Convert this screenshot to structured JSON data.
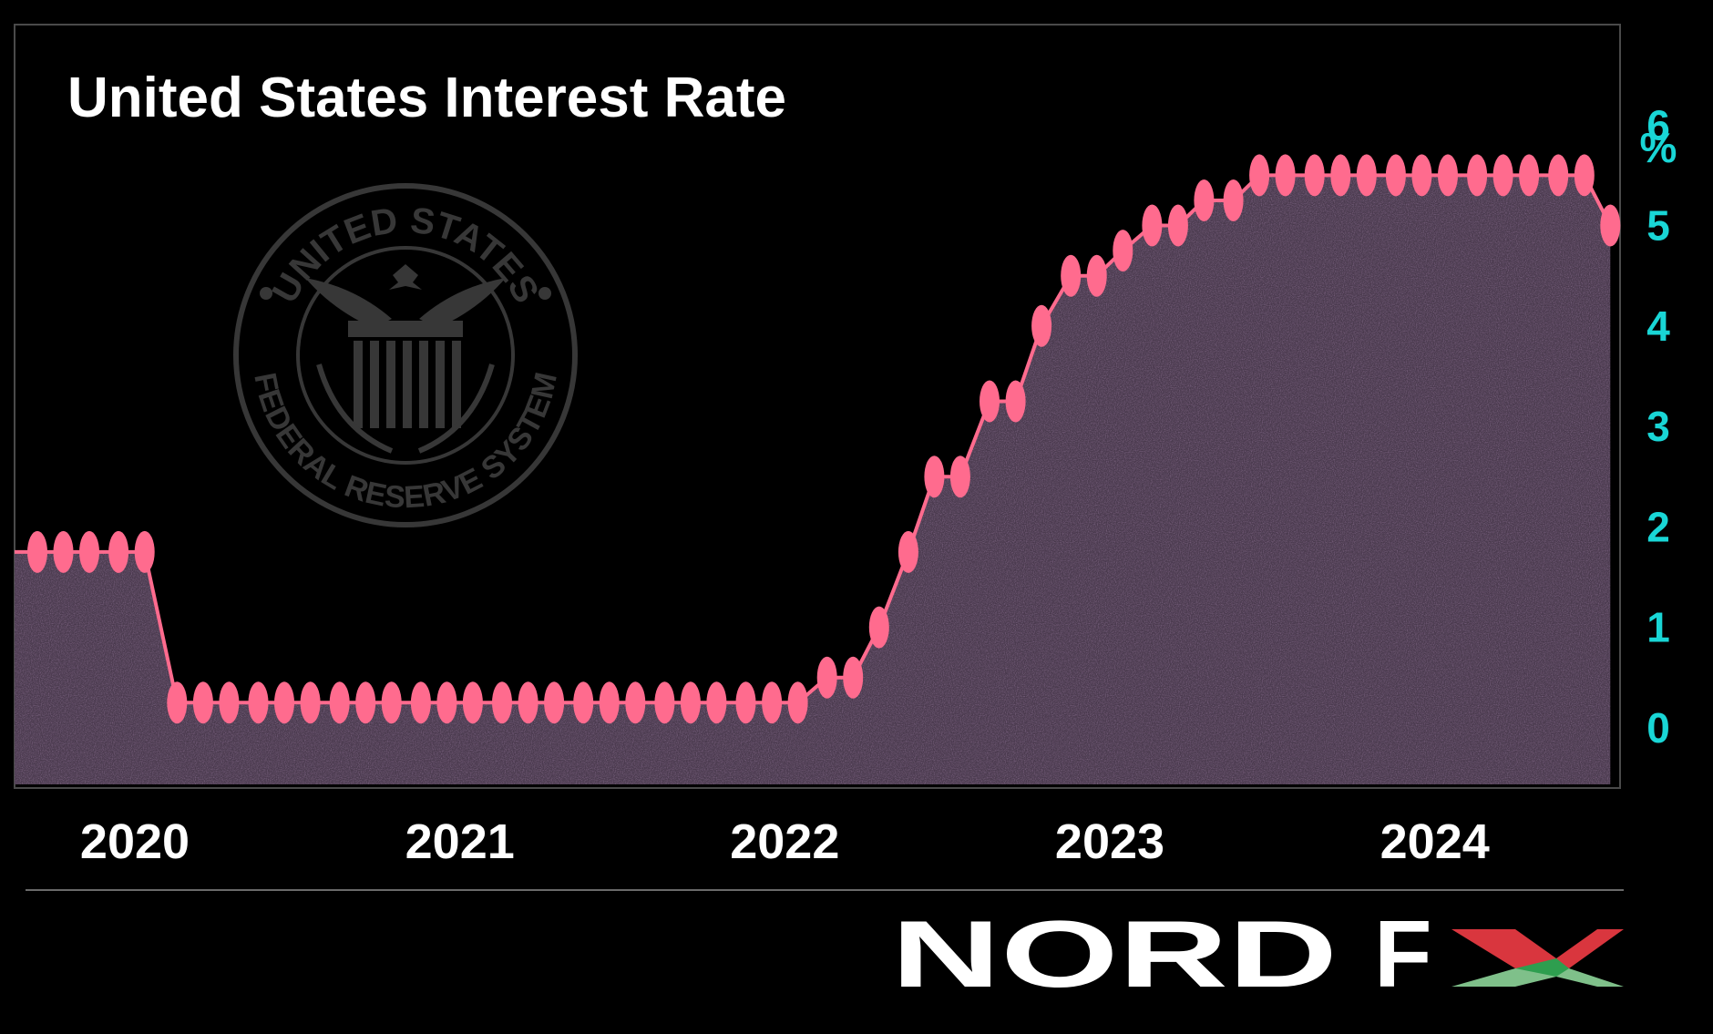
{
  "chart_data": {
    "type": "area",
    "title": "United States Interest Rate",
    "ylabel": "%",
    "yticks": [
      "0",
      "1",
      "2",
      "3",
      "4",
      "5",
      "6"
    ],
    "ylim": [
      -0.6,
      7.0
    ],
    "xlim": [
      2019.63,
      2024.57
    ],
    "xticks": [
      {
        "label": "2020",
        "value": 2020.0
      },
      {
        "label": "2021",
        "value": 2021.0
      },
      {
        "label": "2022",
        "value": 2022.0
      },
      {
        "label": "2023",
        "value": 2023.0
      },
      {
        "label": "2024",
        "value": 2024.0
      }
    ],
    "grid": false,
    "legend": "none",
    "series": [
      {
        "points": [
          [
            2019.7,
            1.75
          ],
          [
            2019.78,
            1.75
          ],
          [
            2019.86,
            1.75
          ],
          [
            2019.95,
            1.75
          ],
          [
            2020.03,
            1.75
          ],
          [
            2020.13,
            0.25
          ],
          [
            2020.21,
            0.25
          ],
          [
            2020.29,
            0.25
          ],
          [
            2020.38,
            0.25
          ],
          [
            2020.46,
            0.25
          ],
          [
            2020.54,
            0.25
          ],
          [
            2020.63,
            0.25
          ],
          [
            2020.71,
            0.25
          ],
          [
            2020.79,
            0.25
          ],
          [
            2020.88,
            0.25
          ],
          [
            2020.96,
            0.25
          ],
          [
            2021.04,
            0.25
          ],
          [
            2021.13,
            0.25
          ],
          [
            2021.21,
            0.25
          ],
          [
            2021.29,
            0.25
          ],
          [
            2021.38,
            0.25
          ],
          [
            2021.46,
            0.25
          ],
          [
            2021.54,
            0.25
          ],
          [
            2021.63,
            0.25
          ],
          [
            2021.71,
            0.25
          ],
          [
            2021.79,
            0.25
          ],
          [
            2021.88,
            0.25
          ],
          [
            2021.96,
            0.25
          ],
          [
            2022.04,
            0.25
          ],
          [
            2022.13,
            0.5
          ],
          [
            2022.21,
            0.5
          ],
          [
            2022.29,
            1.0
          ],
          [
            2022.38,
            1.75
          ],
          [
            2022.46,
            2.5
          ],
          [
            2022.54,
            2.5
          ],
          [
            2022.63,
            3.25
          ],
          [
            2022.71,
            3.25
          ],
          [
            2022.79,
            4.0
          ],
          [
            2022.88,
            4.5
          ],
          [
            2022.96,
            4.5
          ],
          [
            2023.04,
            4.75
          ],
          [
            2023.13,
            5.0
          ],
          [
            2023.21,
            5.0
          ],
          [
            2023.29,
            5.25
          ],
          [
            2023.38,
            5.25
          ],
          [
            2023.46,
            5.5
          ],
          [
            2023.54,
            5.5
          ],
          [
            2023.63,
            5.5
          ],
          [
            2023.71,
            5.5
          ],
          [
            2023.79,
            5.5
          ],
          [
            2023.88,
            5.5
          ],
          [
            2023.96,
            5.5
          ],
          [
            2024.04,
            5.5
          ],
          [
            2024.13,
            5.5
          ],
          [
            2024.21,
            5.5
          ],
          [
            2024.29,
            5.5
          ],
          [
            2024.38,
            5.5
          ],
          [
            2024.46,
            5.5
          ],
          [
            2024.54,
            5.0
          ]
        ]
      }
    ],
    "colors": {
      "line": "#ff6b8e",
      "marker": "#ff6b8e",
      "area": "#4a3a4e",
      "ytick": "#19d6d6",
      "background": "#000000",
      "frame": "#4a4a4a"
    }
  },
  "watermark": {
    "icon": "federal-reserve-seal-icon",
    "text_top": "UNITED STATES",
    "text_bottom": "FEDERAL RESERVE SYSTEM"
  },
  "brand": {
    "logo_text": "NORD FX",
    "word1": "NORD",
    "word2": "F",
    "x_colors": [
      "#2e9e4f",
      "#d9363e",
      "#7fc08a"
    ]
  }
}
